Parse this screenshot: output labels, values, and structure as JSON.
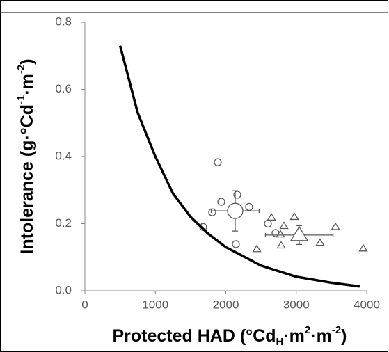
{
  "chart_data": {
    "type": "scatter",
    "x_label": [
      {
        "text": "Protected HAD (°Cd"
      },
      {
        "text": "H",
        "shift": "sub"
      },
      {
        "text": "·m"
      },
      {
        "text": "2",
        "shift": "super"
      },
      {
        "text": "·m"
      },
      {
        "text": "-2",
        "shift": "super"
      },
      {
        "text": ")"
      }
    ],
    "y_label": [
      {
        "text": "Intolerance (g·°Cd"
      },
      {
        "text": "-1",
        "shift": "super"
      },
      {
        "text": "·m"
      },
      {
        "text": "-2",
        "shift": "super"
      },
      {
        "text": ")"
      }
    ],
    "xlim": [
      0,
      4000
    ],
    "xticks": [
      0,
      1000,
      2000,
      3000,
      4000
    ],
    "ylim": [
      0,
      0.8
    ],
    "yticks": [
      {
        "value": 0,
        "label": "0.0"
      },
      0.2,
      0.4,
      0.6,
      0.8
    ],
    "series": [
      {
        "marker": "circle",
        "size": "small",
        "color": "#595959",
        "x": [
          1679,
          1807,
          1936,
          1886,
          2163,
          2143,
          2331,
          2598,
          2706
        ],
        "values": [
          0.19,
          0.234,
          0.265,
          0.383,
          0.286,
          0.139,
          0.25,
          0.2,
          0.172
        ]
      },
      {
        "marker": "triangle",
        "size": "small",
        "color": "#595959",
        "x": [
          2440,
          2647,
          2785,
          2825,
          2973,
          3338,
          3556,
          3951,
          2775
        ],
        "values": [
          0.124,
          0.218,
          0.135,
          0.193,
          0.22,
          0.143,
          0.19,
          0.126,
          0.168
        ]
      },
      {
        "marker": "circle",
        "size": "large",
        "color": "#595959",
        "x": [
          2133
        ],
        "values": [
          0.238
        ],
        "x_error": [
          340
        ],
        "y_error": [
          0.06
        ]
      },
      {
        "marker": "triangle",
        "size": "large",
        "color": "#595959",
        "x": [
          3042
        ],
        "values": [
          0.166
        ],
        "x_error": [
          480
        ],
        "y_error": [
          0.028
        ]
      },
      {
        "marker": "line",
        "color": "#000000",
        "x": [
          500,
          750,
          1000,
          1250,
          1500,
          1750,
          2000,
          2500,
          3000,
          3500,
          3900
        ],
        "values": [
          0.73,
          0.53,
          0.4,
          0.29,
          0.22,
          0.17,
          0.13,
          0.075,
          0.042,
          0.024,
          0.013
        ]
      }
    ]
  }
}
